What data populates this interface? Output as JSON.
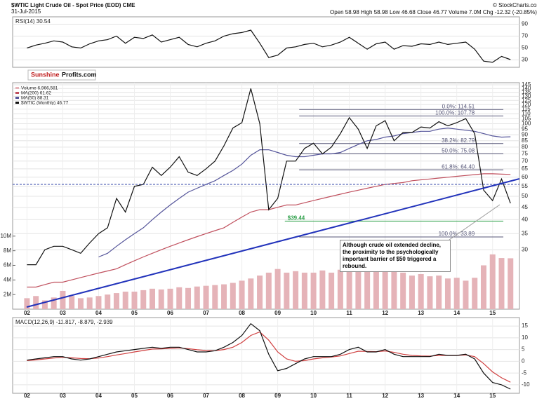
{
  "header": {
    "title": "$WTIC Light Crude Oil - Spot Price (EOD) CME",
    "date": "31-Jul-2015",
    "quote": "Open 58.98 High 58.98 Low 46.68 Close 46.77 Volume 7.0M Chg -12.32 (-20.85%)",
    "source": "© StockCharts.com"
  },
  "watermark": {
    "part1": "Sunshine",
    "part2": "Profits.com"
  },
  "chart_data": [
    {
      "type": "line",
      "title": "RSI(14) 30.54",
      "xlim": [
        2001.6,
        2015.75
      ],
      "x": [
        2002,
        2002.25,
        2002.5,
        2002.75,
        2003,
        2003.25,
        2003.5,
        2003.75,
        2004,
        2004.25,
        2004.5,
        2004.75,
        2005,
        2005.25,
        2005.5,
        2005.75,
        2006,
        2006.25,
        2006.5,
        2006.75,
        2007,
        2007.25,
        2007.5,
        2007.75,
        2008,
        2008.25,
        2008.5,
        2008.75,
        2009,
        2009.25,
        2009.5,
        2009.75,
        2010,
        2010.25,
        2010.5,
        2010.75,
        2011,
        2011.25,
        2011.5,
        2011.75,
        2012,
        2012.25,
        2012.5,
        2012.75,
        2013,
        2013.25,
        2013.5,
        2013.75,
        2014,
        2014.25,
        2014.5,
        2014.75,
        2015,
        2015.25,
        2015.5
      ],
      "series": [
        {
          "color": "#111111",
          "values": [
            50,
            55,
            58,
            62,
            60,
            52,
            50,
            57,
            62,
            64,
            70,
            58,
            68,
            66,
            72,
            60,
            64,
            68,
            56,
            52,
            58,
            62,
            70,
            74,
            76,
            80,
            58,
            34,
            38,
            50,
            52,
            56,
            58,
            52,
            55,
            60,
            68,
            58,
            48,
            57,
            60,
            48,
            54,
            53,
            57,
            56,
            60,
            56,
            58,
            60,
            48,
            28,
            26,
            36,
            30.54
          ]
        }
      ],
      "ylim": [
        20,
        100
      ],
      "yticks": [
        30,
        50,
        70,
        90
      ]
    },
    {
      "type": "line",
      "log_scale": true,
      "xlim": [
        2001.6,
        2015.75
      ],
      "ylim": [
        17,
        148
      ],
      "x": [
        2002,
        2002.25,
        2002.5,
        2002.75,
        2003,
        2003.25,
        2003.5,
        2003.75,
        2004,
        2004.25,
        2004.5,
        2004.75,
        2005,
        2005.25,
        2005.5,
        2005.75,
        2006,
        2006.25,
        2006.5,
        2006.75,
        2007,
        2007.25,
        2007.5,
        2007.75,
        2008,
        2008.25,
        2008.5,
        2008.75,
        2009,
        2009.25,
        2009.5,
        2009.75,
        2010,
        2010.25,
        2010.5,
        2010.75,
        2011,
        2011.25,
        2011.5,
        2011.75,
        2012,
        2012.25,
        2012.5,
        2012.75,
        2013,
        2013.25,
        2013.5,
        2013.75,
        2014,
        2014.25,
        2014.5,
        2014.75,
        2015,
        2015.25,
        2015.5
      ],
      "yticks": [
        30,
        35,
        40,
        45,
        50,
        55,
        60,
        65,
        70,
        75,
        80,
        85,
        90,
        95,
        100,
        105,
        110,
        115,
        120,
        125,
        130,
        135,
        140,
        145
      ],
      "y2lim": [
        0,
        31000000
      ],
      "y2ticks": [
        {
          "value": 2000000,
          "label": "2M"
        },
        {
          "value": 4000000,
          "label": "4M"
        },
        {
          "value": 6000000,
          "label": "6M"
        },
        {
          "value": 8000000,
          "label": "8M"
        },
        {
          "value": 10000000,
          "label": "10M"
        }
      ],
      "xticks": [
        {
          "value": 2002,
          "label": "02"
        },
        {
          "value": 2003,
          "label": "03"
        },
        {
          "value": 2004,
          "label": "04"
        },
        {
          "value": 2005,
          "label": "05"
        },
        {
          "value": 2006,
          "label": "06"
        },
        {
          "value": 2007,
          "label": "07"
        },
        {
          "value": 2008,
          "label": "08"
        },
        {
          "value": 2009,
          "label": "09"
        },
        {
          "value": 2010,
          "label": "10"
        },
        {
          "value": 2011,
          "label": "11"
        },
        {
          "value": 2012,
          "label": "12"
        },
        {
          "value": 2013,
          "label": "13"
        },
        {
          "value": 2014,
          "label": "14"
        },
        {
          "value": 2015,
          "label": "15"
        }
      ],
      "series": [
        {
          "name": "Volume 6,966,581",
          "axis": "y2",
          "style": "bar",
          "color": "#e5b3b8",
          "values": [
            1500000,
            1800000,
            1200000,
            1600000,
            2500000,
            1800000,
            1500000,
            1600000,
            1800000,
            2000000,
            2200000,
            2400000,
            2400000,
            2600000,
            2800000,
            2700000,
            2800000,
            3000000,
            2900000,
            3100000,
            3200000,
            3300000,
            3400000,
            3600000,
            3900000,
            4200000,
            4600000,
            5000000,
            5500000,
            5000000,
            5200000,
            5000000,
            5000000,
            5300000,
            5000000,
            5400000,
            6000000,
            5800000,
            5500000,
            5200000,
            5400000,
            5500000,
            5000000,
            4600000,
            4800000,
            4500000,
            4600000,
            4200000,
            4300000,
            3900000,
            4300000,
            6000000,
            7500000,
            7000000,
            6966581
          ]
        },
        {
          "name": "MA(200) 61.62",
          "color": "#c0505e",
          "values": [
            21,
            21,
            21.5,
            22,
            22,
            22.5,
            23,
            23.5,
            24,
            24.5,
            25,
            26,
            27,
            28,
            29,
            30,
            31,
            32,
            33,
            34,
            35,
            36,
            37,
            39,
            41,
            43,
            44,
            44,
            45,
            46,
            46,
            47,
            48,
            49,
            50,
            51,
            52,
            53,
            54,
            55,
            56,
            56.5,
            57,
            58,
            58.5,
            59,
            59.5,
            60,
            60.5,
            61,
            61.5,
            62,
            62,
            61.8,
            61.62
          ]
        },
        {
          "name": "MA(50) 88.31",
          "color": "#55559a",
          "values": [
            null,
            null,
            null,
            null,
            null,
            null,
            null,
            null,
            28,
            29,
            31,
            33,
            35,
            37,
            40,
            43,
            46,
            49,
            52,
            54,
            56,
            58,
            61,
            64,
            68,
            74,
            78,
            78,
            76,
            74,
            73,
            73,
            74,
            75,
            75,
            76,
            79,
            82,
            85,
            86,
            88,
            89,
            91,
            92,
            93,
            93,
            95,
            96,
            95,
            94,
            93,
            91,
            89,
            88,
            88.31
          ]
        },
        {
          "name": "$WTIC (Monthly) 46.77",
          "color": "#111111",
          "values": [
            26,
            26,
            30,
            31,
            31,
            30,
            29,
            32,
            35,
            37,
            49,
            43,
            55,
            56,
            66,
            61,
            66,
            73,
            63,
            61,
            65,
            70,
            81,
            96,
            101,
            140,
            100,
            44,
            49,
            70,
            70,
            79,
            83,
            75,
            80,
            91,
            106,
            95,
            79,
            98,
            103,
            85,
            92,
            92,
            97,
            96,
            102,
            98,
            101,
            105,
            91,
            53,
            48,
            59,
            46.77
          ]
        }
      ],
      "levels": [
        {
          "label": "0.0%: 114.51",
          "value": 114.51,
          "color": "#555577"
        },
        {
          "label": "100.0%: 107.78",
          "value": 107.78,
          "color": "#555577"
        },
        {
          "label": "38.2%: 82.79",
          "value": 82.79,
          "color": "#555577"
        },
        {
          "label": "50.0%: 75.08",
          "value": 75.08,
          "color": "#555577"
        },
        {
          "label": "61.8%: 64.40",
          "value": 64.4,
          "color": "#555577"
        },
        {
          "label": "$39.44",
          "value": 39.44,
          "color": "#2ea04a",
          "label_side": "left"
        },
        {
          "label": "100.0%: 33.89",
          "value": 33.89,
          "color": "#555577"
        }
      ],
      "note": "Although crude oil extended decline, the proximity to the psychologically important barrier of $50 triggered a rebound."
    },
    {
      "type": "line",
      "title": "MACD(12,26,9) -11.817, -8.879, -2.939",
      "xlim": [
        2001.6,
        2015.75
      ],
      "ylim": [
        -13,
        18
      ],
      "x": [
        2002,
        2002.25,
        2002.5,
        2002.75,
        2003,
        2003.25,
        2003.5,
        2003.75,
        2004,
        2004.25,
        2004.5,
        2004.75,
        2005,
        2005.25,
        2005.5,
        2005.75,
        2006,
        2006.25,
        2006.5,
        2006.75,
        2007,
        2007.25,
        2007.5,
        2007.75,
        2008,
        2008.25,
        2008.5,
        2008.75,
        2009,
        2009.25,
        2009.5,
        2009.75,
        2010,
        2010.25,
        2010.5,
        2010.75,
        2011,
        2011.25,
        2011.5,
        2011.75,
        2012,
        2012.25,
        2012.5,
        2012.75,
        2013,
        2013.25,
        2013.5,
        2013.75,
        2014,
        2014.25,
        2014.5,
        2014.75,
        2015,
        2015.25,
        2015.5
      ],
      "yticks": [
        -10,
        -5,
        0,
        5,
        10,
        15
      ],
      "xticks": [
        {
          "value": 2002,
          "label": "02"
        },
        {
          "value": 2003,
          "label": "03"
        },
        {
          "value": 2004,
          "label": "04"
        },
        {
          "value": 2005,
          "label": "05"
        },
        {
          "value": 2006,
          "label": "06"
        },
        {
          "value": 2007,
          "label": "07"
        },
        {
          "value": 2008,
          "label": "08"
        },
        {
          "value": 2009,
          "label": "09"
        },
        {
          "value": 2010,
          "label": "10"
        },
        {
          "value": 2011,
          "label": "11"
        },
        {
          "value": 2012,
          "label": "12"
        },
        {
          "value": 2013,
          "label": "13"
        },
        {
          "value": 2014,
          "label": "14"
        },
        {
          "value": 2015,
          "label": "15"
        }
      ],
      "series": [
        {
          "color": "#d04040",
          "values": [
            0.3,
            0.6,
            1,
            1.4,
            1.7,
            1.5,
            1.2,
            1.1,
            1.4,
            2,
            2.7,
            3.3,
            4,
            4.6,
            5.2,
            5.3,
            5.5,
            5.7,
            5.4,
            4.9,
            4.6,
            4.5,
            5,
            6,
            8,
            11,
            12.5,
            9,
            4,
            1,
            0,
            0.3,
            1,
            1.5,
            1.8,
            2.3,
            3.3,
            4.3,
            4.2,
            4.1,
            4.4,
            3.8,
            3,
            2.5,
            2.3,
            2.2,
            2.5,
            2.5,
            2.5,
            2.7,
            2,
            -1,
            -4.5,
            -7,
            -8.879
          ]
        },
        {
          "color": "#111111",
          "values": [
            0.5,
            1,
            1.5,
            2,
            2,
            1,
            0.5,
            1,
            2,
            3,
            4,
            4.5,
            5,
            5.5,
            6,
            5.5,
            6,
            6,
            5,
            4,
            4,
            4.5,
            6,
            8,
            11,
            16,
            13,
            3,
            -4,
            -3,
            -1,
            1,
            2,
            2,
            2,
            3,
            5,
            6,
            4,
            4,
            5,
            3,
            2,
            2,
            2,
            2,
            3,
            2.5,
            2.5,
            3,
            1,
            -5,
            -9,
            -10,
            -11.817
          ]
        }
      ]
    }
  ]
}
